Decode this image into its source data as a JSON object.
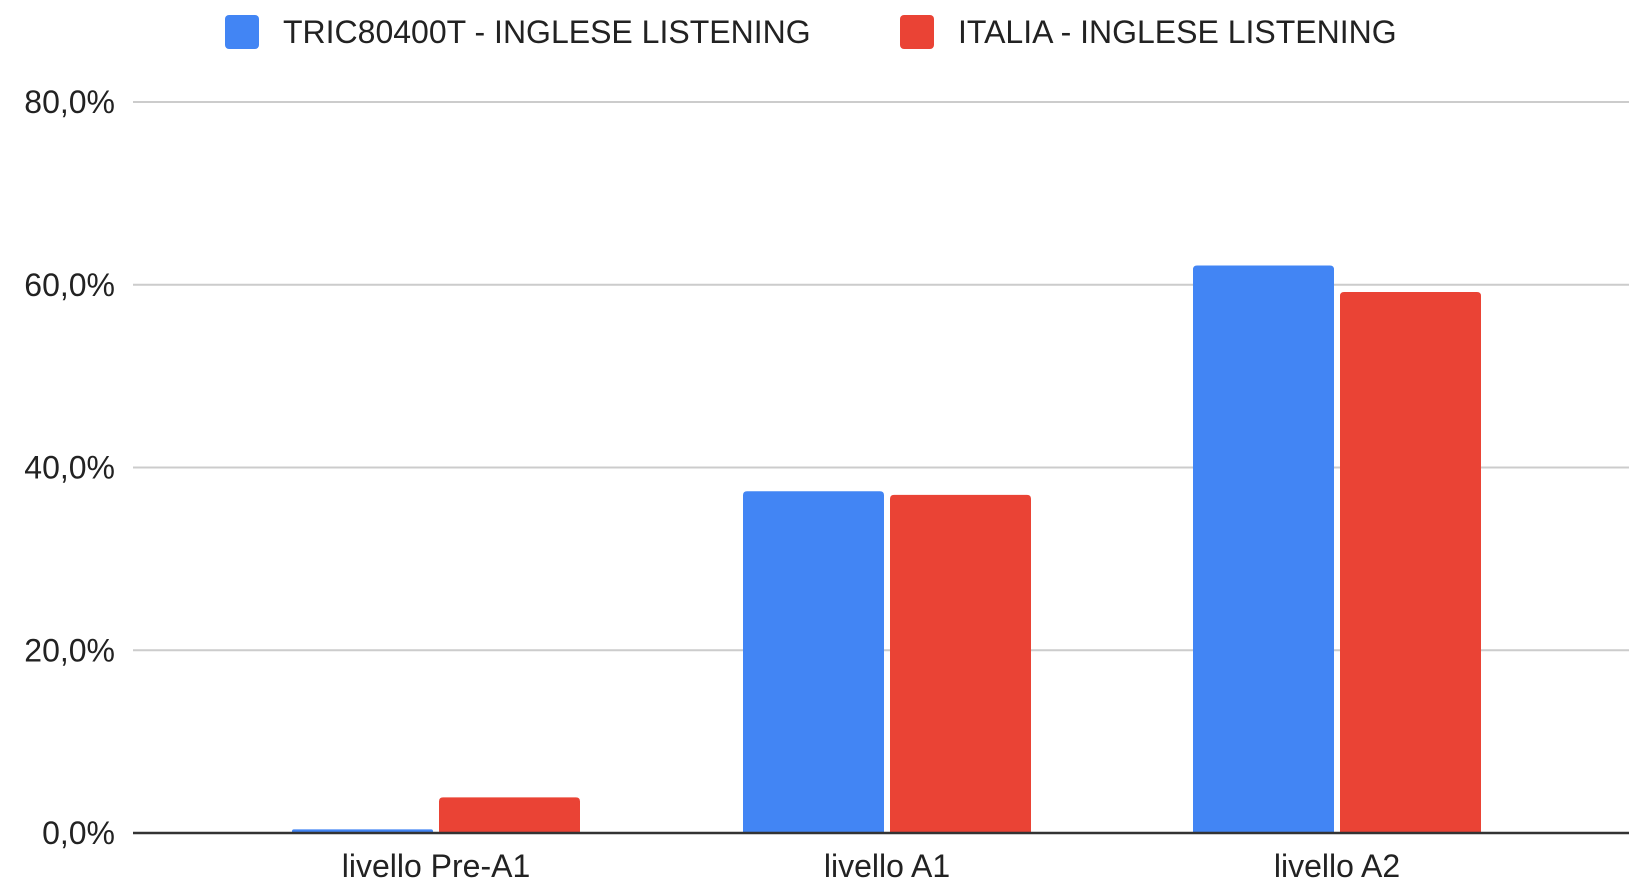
{
  "chart_data": {
    "type": "bar",
    "categories": [
      "livello Pre-A1",
      "livello A1",
      "livello A2"
    ],
    "series": [
      {
        "name": "TRIC80400T - INGLESE LISTENING",
        "color": "#4285f4",
        "values": [
          0.4,
          37.4,
          62.1
        ]
      },
      {
        "name": "ITALIA - INGLESE LISTENING",
        "color": "#ea4335",
        "values": [
          3.9,
          37.0,
          59.2
        ]
      }
    ],
    "ylim": [
      0,
      80
    ],
    "yticks": [
      0,
      20,
      40,
      60,
      80
    ],
    "ytick_labels": [
      "0,0%",
      "20,0%",
      "40,0%",
      "60,0%",
      "80,0%"
    ],
    "title": "",
    "xlabel": "",
    "ylabel": "",
    "legend": "top-center",
    "grid": true
  }
}
